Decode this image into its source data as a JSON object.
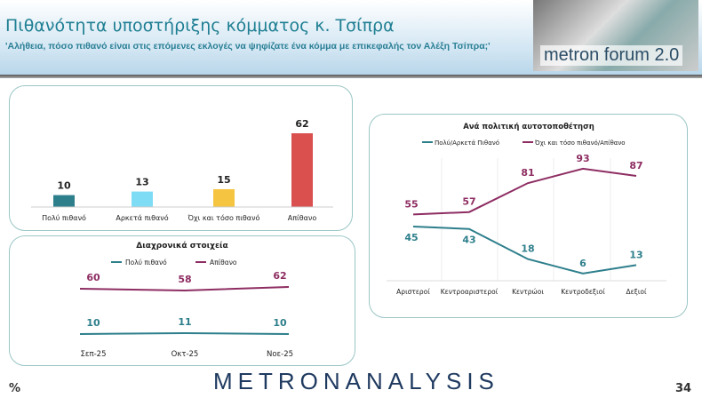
{
  "header": {
    "title": "Πιθανότητα υποστήριξης κόμματος κ. Τσίπρα",
    "subtitle": "'Αλήθεια, πόσο πιθανό είναι στις επόμενες εκλογές να ψηφίζατε ένα κόμμα με επικεφαλής τον Αλέξη Τσίπρα;'",
    "logo_text": "metron forum 2.0"
  },
  "footer": {
    "brand": "METRONANALYSIS",
    "unit": "%",
    "page": "34"
  },
  "chart_data": [
    {
      "type": "bar",
      "title": "",
      "categories": [
        "Πολύ πιθανό",
        "Αρκετά πιθανό",
        "Όχι και τόσο πιθανό",
        "Απίθανο"
      ],
      "values": [
        10,
        13,
        15,
        62
      ],
      "colors": [
        "#2e7f8c",
        "#7fdcf5",
        "#f5c542",
        "#d9504f"
      ],
      "ylim": [
        0,
        62
      ]
    },
    {
      "type": "line",
      "title": "Διαχρονικά στοιχεία",
      "categories": [
        "Σεπ-25",
        "Οκτ-25",
        "Νοε-25"
      ],
      "series": [
        {
          "name": "Πολύ πιθανό",
          "values": [
            10,
            11,
            10
          ],
          "color": "#2e7f8c"
        },
        {
          "name": "Απίθανο",
          "values": [
            60,
            58,
            62
          ],
          "color": "#8e2d62"
        }
      ]
    },
    {
      "type": "line",
      "title": "Ανά πολιτική αυτοτοποθέτηση",
      "categories": [
        "Αριστεροί",
        "Κεντροαριστεροί",
        "Κεντρώοι",
        "Κεντροδεξιοί",
        "Δεξιοί"
      ],
      "series": [
        {
          "name": "Πολύ/Αρκετά Πιθανό",
          "values": [
            45,
            43,
            18,
            6,
            13
          ],
          "color": "#2e7f8c"
        },
        {
          "name": "Όχι και τόσο πιθανό/Απίθανο",
          "values": [
            55,
            57,
            81,
            93,
            87
          ],
          "color": "#8e2d62"
        }
      ],
      "legend": "top",
      "grid": "vertical"
    }
  ]
}
